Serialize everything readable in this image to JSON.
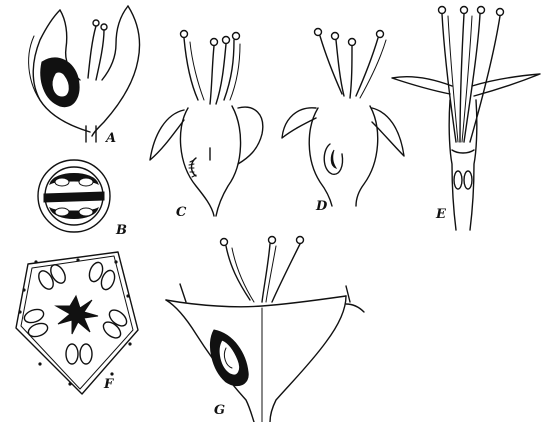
{
  "figures": [
    {
      "id": "A",
      "label": "A"
    },
    {
      "id": "B",
      "label": "B"
    },
    {
      "id": "C",
      "label": "C"
    },
    {
      "id": "D",
      "label": "D"
    },
    {
      "id": "E",
      "label": "E"
    },
    {
      "id": "F",
      "label": "F"
    },
    {
      "id": "G",
      "label": "G"
    }
  ],
  "colors": {
    "ink": "#111111",
    "paper": "#ffffff"
  }
}
